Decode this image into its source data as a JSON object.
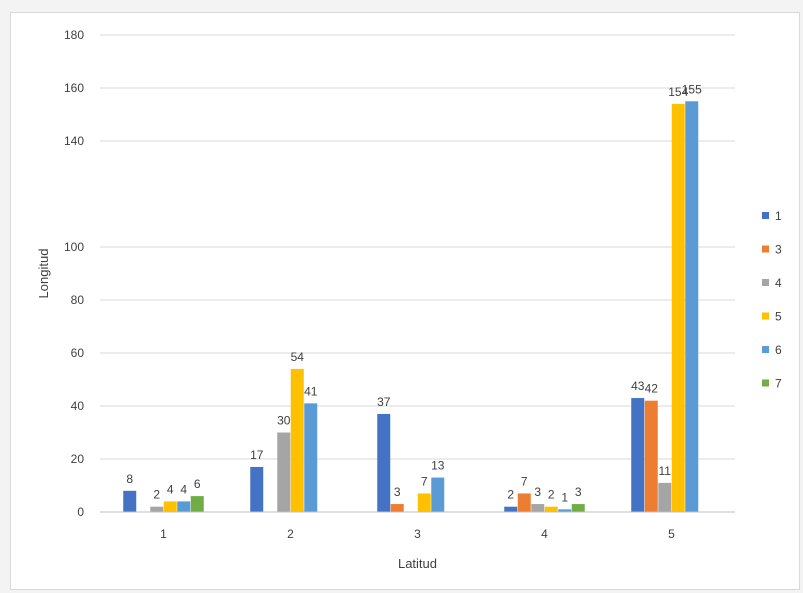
{
  "chart_data": {
    "type": "bar",
    "title": "",
    "xlabel": "Latitud",
    "ylabel": "Longitud",
    "ylim": [
      0,
      180
    ],
    "yticks": [
      0,
      20,
      40,
      60,
      80,
      100,
      140,
      160,
      180
    ],
    "categories": [
      "1",
      "2",
      "3",
      "4",
      "5"
    ],
    "grid": true,
    "legend": "right",
    "series": [
      {
        "name": "1",
        "color": "#4472C4",
        "values": [
          8,
          17,
          37,
          2,
          43
        ]
      },
      {
        "name": "3",
        "color": "#ED7D31",
        "values": [
          null,
          null,
          3,
          7,
          42
        ]
      },
      {
        "name": "4",
        "color": "#A5A5A5",
        "values": [
          2,
          30,
          null,
          3,
          11
        ]
      },
      {
        "name": "5",
        "color": "#FFC000",
        "values": [
          4,
          54,
          7,
          2,
          154
        ]
      },
      {
        "name": "6",
        "color": "#5B9BD5",
        "values": [
          4,
          41,
          13,
          1,
          155
        ]
      },
      {
        "name": "7",
        "color": "#70AD47",
        "values": [
          6,
          null,
          null,
          3,
          null
        ]
      }
    ]
  }
}
